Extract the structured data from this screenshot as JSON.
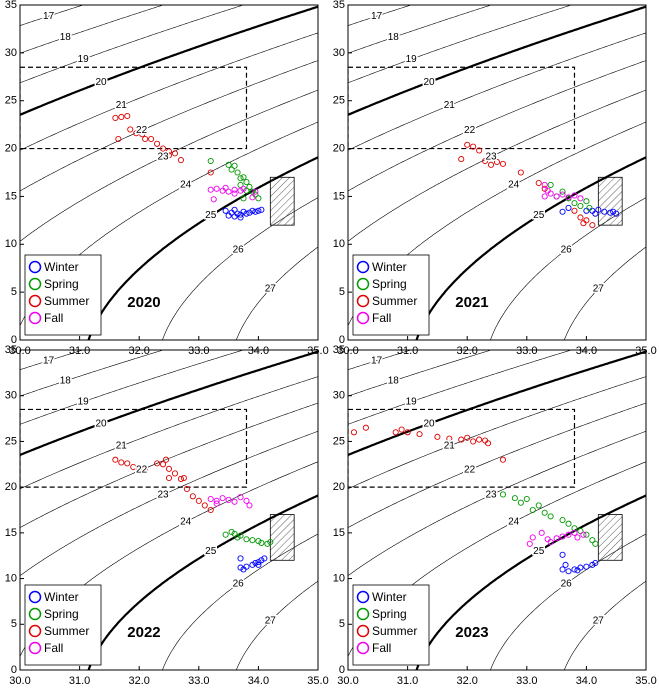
{
  "chart_data": [
    {
      "type": "scatter",
      "title": "2020",
      "xlim": [
        30,
        35
      ],
      "ylim": [
        0,
        35
      ],
      "xticks": [
        {
          "value": 30,
          "label": "30.0"
        },
        {
          "value": 31,
          "label": "31.0"
        },
        {
          "value": 32,
          "label": "32.0"
        },
        {
          "value": 33,
          "label": "33.0"
        },
        {
          "value": 34,
          "label": "34.0"
        },
        {
          "value": 35,
          "label": "35.0"
        }
      ],
      "yticks": [
        0,
        5,
        10,
        15,
        20,
        25,
        30,
        35
      ],
      "contour_levels": [
        17,
        18,
        19,
        20,
        21,
        22,
        23,
        24,
        25,
        26,
        27
      ],
      "bold_levels": [
        20,
        25
      ],
      "regions": [
        {
          "xlim": [
            30,
            33.8
          ],
          "ylim": [
            20,
            28.5
          ],
          "style": "dashed"
        },
        {
          "xlim": [
            34.2,
            34.6
          ],
          "ylim": [
            12,
            17
          ],
          "style": "hatched"
        }
      ],
      "series": [
        {
          "name": "Winter",
          "color": "#0000ff",
          "x": [
            33.45,
            33.5,
            33.55,
            33.6,
            33.65,
            33.7,
            33.75,
            33.8,
            33.85,
            33.9,
            33.95,
            34.0,
            34.05,
            33.6,
            33.7
          ],
          "y": [
            13.5,
            13.0,
            13.3,
            12.9,
            13.2,
            13.1,
            13.4,
            13.2,
            13.3,
            13.5,
            13.4,
            13.5,
            13.6,
            13.6,
            12.8
          ]
        },
        {
          "name": "Spring",
          "color": "#009900",
          "x": [
            33.2,
            33.5,
            33.55,
            33.6,
            33.65,
            33.7,
            33.75,
            33.8,
            33.85,
            33.9,
            33.95,
            34.0,
            33.7,
            33.8,
            33.75
          ],
          "y": [
            18.7,
            18.3,
            17.8,
            18.2,
            17.5,
            16.9,
            17.0,
            16.5,
            16.0,
            15.5,
            15.2,
            14.8,
            16.2,
            15.6,
            14.8
          ]
        },
        {
          "name": "Summer",
          "color": "#e00000",
          "x": [
            31.6,
            31.7,
            31.8,
            31.65,
            31.85,
            31.95,
            32.0,
            32.05,
            32.1,
            32.2,
            32.3,
            32.4,
            32.5,
            32.6,
            32.7,
            33.2,
            32.5
          ],
          "y": [
            23.2,
            23.3,
            23.4,
            21.0,
            22.0,
            21.6,
            21.8,
            21.5,
            21.0,
            21.0,
            20.5,
            20.0,
            19.7,
            19.5,
            18.8,
            17.5,
            19.3
          ]
        },
        {
          "name": "Fall",
          "color": "#ee00ee",
          "x": [
            33.2,
            33.3,
            33.4,
            33.45,
            33.5,
            33.6,
            33.7,
            33.75,
            33.25,
            33.6,
            33.95,
            33.9
          ],
          "y": [
            15.7,
            15.8,
            15.6,
            15.9,
            15.5,
            15.7,
            15.6,
            15.8,
            14.7,
            15.3,
            15.5,
            14.9
          ]
        }
      ]
    },
    {
      "type": "scatter",
      "title": "2021",
      "xlim": [
        30,
        35
      ],
      "ylim": [
        0,
        35
      ],
      "xticks": [
        {
          "value": 30,
          "label": "30.0"
        },
        {
          "value": 31,
          "label": "31.0"
        },
        {
          "value": 32,
          "label": "32.0"
        },
        {
          "value": 33,
          "label": "33.0"
        },
        {
          "value": 34,
          "label": "34.0"
        },
        {
          "value": 35,
          "label": "35.0"
        }
      ],
      "yticks": [
        0,
        5,
        10,
        15,
        20,
        25,
        30,
        35
      ],
      "contour_levels": [
        17,
        18,
        19,
        20,
        21,
        22,
        23,
        24,
        25,
        26,
        27
      ],
      "bold_levels": [
        20,
        25
      ],
      "regions": [
        {
          "xlim": [
            30,
            33.8
          ],
          "ylim": [
            20,
            28.5
          ],
          "style": "dashed"
        },
        {
          "xlim": [
            34.2,
            34.6
          ],
          "ylim": [
            12,
            17
          ],
          "style": "hatched"
        }
      ],
      "series": [
        {
          "name": "Winter",
          "color": "#0000ff",
          "x": [
            34.1,
            34.2,
            34.3,
            34.4,
            34.45,
            34.5,
            33.6,
            33.7,
            34.0,
            34.15
          ],
          "y": [
            13.5,
            13.6,
            13.4,
            13.3,
            13.4,
            13.2,
            13.4,
            13.8,
            13.5,
            13.2
          ]
        },
        {
          "name": "Spring",
          "color": "#009900",
          "x": [
            33.4,
            33.6,
            33.7,
            33.8,
            33.9,
            34.0,
            34.05,
            33.5
          ],
          "y": [
            16.2,
            15.5,
            14.8,
            14.3,
            14.0,
            14.5,
            13.8,
            15.0
          ]
        },
        {
          "name": "Summer",
          "color": "#e00000",
          "x": [
            31.9,
            32.0,
            32.1,
            32.2,
            32.3,
            32.4,
            32.5,
            32.6,
            32.9,
            33.2,
            33.3,
            33.8,
            33.9,
            34.0,
            34.1,
            33.95
          ],
          "y": [
            18.9,
            20.4,
            20.2,
            19.8,
            18.7,
            18.3,
            18.6,
            18.4,
            17.5,
            16.4,
            15.8,
            13.5,
            12.8,
            12.5,
            12.0,
            12.2
          ]
        },
        {
          "name": "Fall",
          "color": "#ee00ee",
          "x": [
            33.3,
            33.35,
            33.4,
            33.5,
            33.6,
            33.7,
            33.8,
            33.9,
            33.3
          ],
          "y": [
            16.2,
            15.6,
            15.3,
            15.0,
            15.2,
            14.9,
            15.1,
            14.8,
            15.0
          ]
        }
      ]
    },
    {
      "type": "scatter",
      "title": "2022",
      "xlim": [
        30,
        35
      ],
      "ylim": [
        0,
        35
      ],
      "xticks": [
        {
          "value": 30,
          "label": "30.0"
        },
        {
          "value": 31,
          "label": "31.0"
        },
        {
          "value": 32,
          "label": "32.0"
        },
        {
          "value": 33,
          "label": "33.0"
        },
        {
          "value": 34,
          "label": "34.0"
        },
        {
          "value": 35,
          "label": "35.0"
        }
      ],
      "yticks": [
        0,
        5,
        10,
        15,
        20,
        25,
        30,
        35
      ],
      "contour_levels": [
        17,
        18,
        19,
        20,
        21,
        22,
        23,
        24,
        25,
        26,
        27
      ],
      "bold_levels": [
        20,
        25
      ],
      "regions": [
        {
          "xlim": [
            30,
            33.8
          ],
          "ylim": [
            20,
            28.5
          ],
          "style": "dashed"
        },
        {
          "xlim": [
            34.2,
            34.6
          ],
          "ylim": [
            12,
            17
          ],
          "style": "hatched"
        }
      ],
      "series": [
        {
          "name": "Winter",
          "color": "#0000ff",
          "x": [
            33.7,
            33.8,
            33.9,
            33.95,
            34.0,
            34.05,
            34.1,
            33.7,
            33.75,
            34.0
          ],
          "y": [
            11.2,
            11.3,
            11.5,
            11.7,
            11.8,
            12.0,
            12.2,
            12.2,
            11.0,
            11.5
          ]
        },
        {
          "name": "Spring",
          "color": "#009900",
          "x": [
            33.45,
            33.6,
            33.7,
            33.8,
            33.9,
            34.0,
            34.05,
            34.15,
            34.2,
            33.65,
            33.55
          ],
          "y": [
            14.8,
            14.9,
            14.7,
            14.3,
            14.2,
            14.1,
            13.9,
            13.8,
            14.0,
            14.5,
            15.1
          ]
        },
        {
          "name": "Summer",
          "color": "#e00000",
          "x": [
            31.6,
            31.7,
            31.8,
            31.9,
            32.0,
            32.1,
            32.3,
            32.4,
            32.5,
            32.6,
            32.7,
            32.75,
            32.8,
            32.9,
            33.0,
            33.1,
            33.2,
            32.5,
            32.45
          ],
          "y": [
            23.0,
            22.7,
            22.6,
            22.2,
            22.0,
            21.8,
            22.6,
            22.5,
            22.0,
            21.5,
            20.9,
            21.0,
            19.8,
            19.0,
            18.5,
            18.0,
            17.5,
            21.0,
            23.0
          ]
        },
        {
          "name": "Fall",
          "color": "#ee00ee",
          "x": [
            33.2,
            33.3,
            33.4,
            33.5,
            33.6,
            33.7,
            33.8,
            33.85,
            33.3
          ],
          "y": [
            18.7,
            18.5,
            18.8,
            18.6,
            18.4,
            18.9,
            18.5,
            18.0,
            18.2
          ]
        }
      ]
    },
    {
      "type": "scatter",
      "title": "2023",
      "xlim": [
        30,
        35
      ],
      "ylim": [
        0,
        35
      ],
      "xticks": [
        {
          "value": 30,
          "label": "30.0"
        },
        {
          "value": 31,
          "label": "31.0"
        },
        {
          "value": 32,
          "label": "32.0"
        },
        {
          "value": 33,
          "label": "33.0"
        },
        {
          "value": 34,
          "label": "34.0"
        },
        {
          "value": 35,
          "label": "35.0"
        }
      ],
      "yticks": [
        0,
        5,
        10,
        15,
        20,
        25,
        30,
        35
      ],
      "contour_levels": [
        17,
        18,
        19,
        20,
        21,
        22,
        23,
        24,
        25,
        26,
        27
      ],
      "bold_levels": [
        20,
        25
      ],
      "regions": [
        {
          "xlim": [
            30,
            33.8
          ],
          "ylim": [
            20,
            28.5
          ],
          "style": "dashed"
        },
        {
          "xlim": [
            34.2,
            34.6
          ],
          "ylim": [
            12,
            17
          ],
          "style": "hatched"
        }
      ],
      "series": [
        {
          "name": "Winter",
          "color": "#0000ff",
          "x": [
            33.6,
            33.7,
            33.8,
            33.9,
            34.0,
            34.1,
            34.15,
            33.6,
            33.65,
            33.85
          ],
          "y": [
            11.0,
            10.8,
            11.0,
            11.2,
            11.3,
            11.5,
            11.7,
            12.6,
            11.5,
            10.9
          ]
        },
        {
          "name": "Spring",
          "color": "#009900",
          "x": [
            32.4,
            32.6,
            32.8,
            32.9,
            33.0,
            33.2,
            33.3,
            33.4,
            33.6,
            33.7,
            33.8,
            33.9,
            34.0,
            34.1,
            34.15,
            33.1
          ],
          "y": [
            19.4,
            19.2,
            18.8,
            18.3,
            18.7,
            18.0,
            17.2,
            16.8,
            16.4,
            16.0,
            15.5,
            15.2,
            14.8,
            14.2,
            13.8,
            17.5
          ]
        },
        {
          "name": "Summer",
          "color": "#e00000",
          "x": [
            30.1,
            30.3,
            30.8,
            30.9,
            31.0,
            31.2,
            31.5,
            31.7,
            31.9,
            32.0,
            32.1,
            32.2,
            32.3,
            32.35,
            32.6
          ],
          "y": [
            26.0,
            26.5,
            26.0,
            26.3,
            26.0,
            25.8,
            25.5,
            25.3,
            25.2,
            25.4,
            25.0,
            25.2,
            25.1,
            24.8,
            23.0
          ]
        },
        {
          "name": "Fall",
          "color": "#ee00ee",
          "x": [
            33.1,
            33.25,
            33.35,
            33.4,
            33.5,
            33.6,
            33.7,
            33.8,
            33.85,
            33.95,
            33.05
          ],
          "y": [
            14.5,
            15.0,
            14.3,
            14.0,
            14.4,
            14.6,
            14.8,
            15.0,
            14.5,
            14.8,
            13.8
          ]
        }
      ]
    }
  ]
}
